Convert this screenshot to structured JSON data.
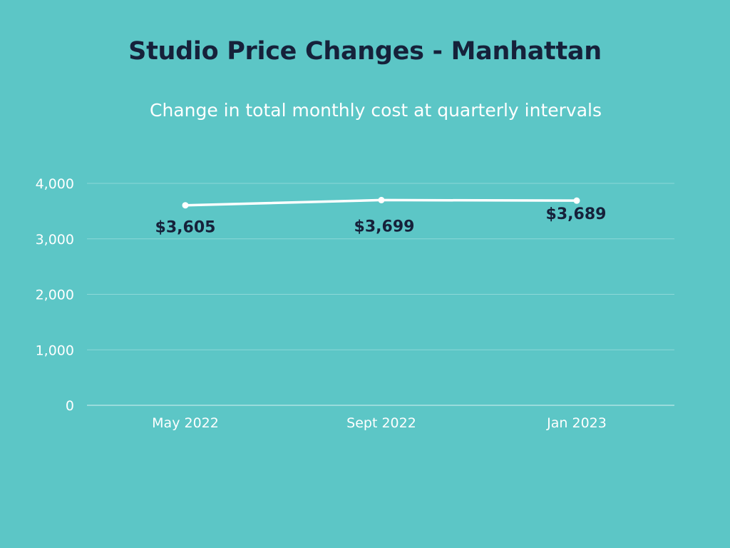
{
  "chart_data": {
    "type": "line",
    "title": "Studio Price Changes - Manhattan",
    "subtitle": "Change in total monthly cost at quarterly intervals",
    "xlabel": "",
    "ylabel": "",
    "categories": [
      "May 2022",
      "Sept 2022",
      "Jan 2023"
    ],
    "series": [
      {
        "values": [
          3605,
          3699,
          3689
        ],
        "labels": [
          "$3,605",
          "$3,699",
          "$3,689"
        ]
      }
    ],
    "ylim": [
      0,
      4000
    ],
    "yticks": [
      0,
      1000,
      2000,
      3000,
      4000
    ],
    "ytick_labels": [
      "0",
      "1,000",
      "2,000",
      "3,000",
      "4,000"
    ],
    "grid": true,
    "legend": "none",
    "colors": {
      "background": "#5cc6c6",
      "line": "#ffffff",
      "grid": "#8dd8d8",
      "title": "#16213a",
      "text": "#ffffff",
      "data_label": "#16213a"
    }
  }
}
